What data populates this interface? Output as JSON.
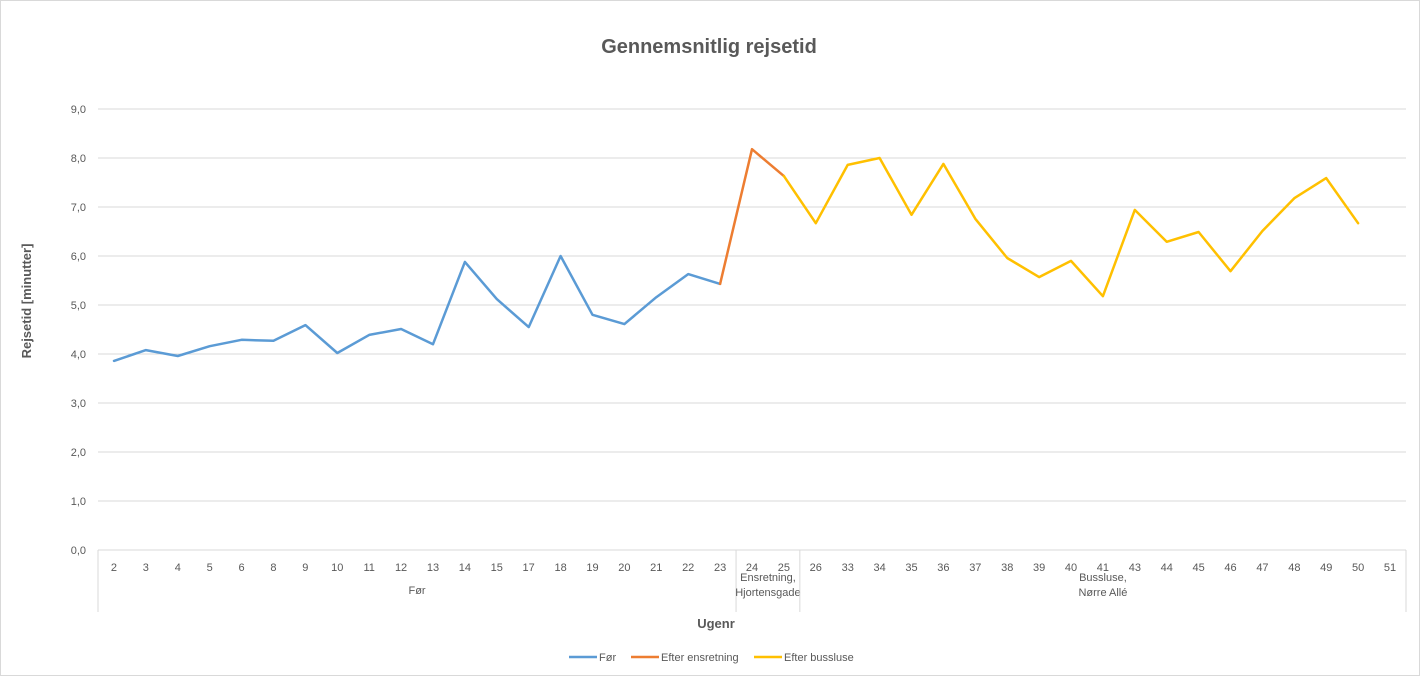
{
  "chart_data": {
    "type": "line",
    "title": "Gennemsnitlig rejsetid",
    "xlabel": "Ugenr",
    "ylabel": "Rejsetid [minutter]",
    "ylim": [
      0,
      9
    ],
    "yticks": [
      "0,0",
      "1,0",
      "2,0",
      "3,0",
      "4,0",
      "5,0",
      "6,0",
      "7,0",
      "8,0",
      "9,0"
    ],
    "grid": true,
    "legend_position": "bottom",
    "categories": [
      "2",
      "3",
      "4",
      "5",
      "6",
      "8",
      "9",
      "10",
      "11",
      "12",
      "13",
      "14",
      "15",
      "17",
      "18",
      "19",
      "20",
      "21",
      "22",
      "23",
      "24",
      "25",
      "26",
      "33",
      "34",
      "35",
      "36",
      "37",
      "38",
      "39",
      "40",
      "41",
      "43",
      "44",
      "45",
      "46",
      "47",
      "48",
      "49",
      "50",
      "51"
    ],
    "groups": [
      {
        "label": "Før",
        "count": 20
      },
      {
        "label": "Ensretning, Hjortensgade",
        "lines": [
          "Ensretning,",
          "Hjortensgade"
        ],
        "count": 2
      },
      {
        "label": "Bussluse, Nørre Allé",
        "lines": [
          "Bussluse,",
          "Nørre Allé"
        ],
        "count": 19
      }
    ],
    "series": [
      {
        "name": "Før",
        "color": "#5b9bd5",
        "values": [
          3.86,
          4.08,
          3.96,
          4.16,
          4.29,
          4.27,
          4.59,
          4.02,
          4.39,
          4.51,
          4.2,
          5.88,
          5.12,
          4.55,
          6.0,
          4.8,
          4.61,
          5.16,
          5.63,
          5.43,
          null,
          null,
          null,
          null,
          null,
          null,
          null,
          null,
          null,
          null,
          null,
          null,
          null,
          null,
          null,
          null,
          null,
          null,
          null,
          null,
          null
        ]
      },
      {
        "name": "Efter ensretning",
        "color": "#ed7d31",
        "values": [
          null,
          null,
          null,
          null,
          null,
          null,
          null,
          null,
          null,
          null,
          null,
          null,
          null,
          null,
          null,
          null,
          null,
          null,
          null,
          5.43,
          8.18,
          7.63,
          null,
          null,
          null,
          null,
          null,
          null,
          null,
          null,
          null,
          null,
          null,
          null,
          null,
          null,
          null,
          null,
          null,
          null,
          null
        ]
      },
      {
        "name": "Efter bussluse",
        "color": "#ffc000",
        "values": [
          null,
          null,
          null,
          null,
          null,
          null,
          null,
          null,
          null,
          null,
          null,
          null,
          null,
          null,
          null,
          null,
          null,
          null,
          null,
          null,
          null,
          7.63,
          6.67,
          7.86,
          8.0,
          6.84,
          7.88,
          6.76,
          5.96,
          5.57,
          5.9,
          5.18,
          6.94,
          6.29,
          6.49,
          5.69,
          6.51,
          7.18,
          7.59,
          6.67,
          null
        ]
      }
    ]
  }
}
